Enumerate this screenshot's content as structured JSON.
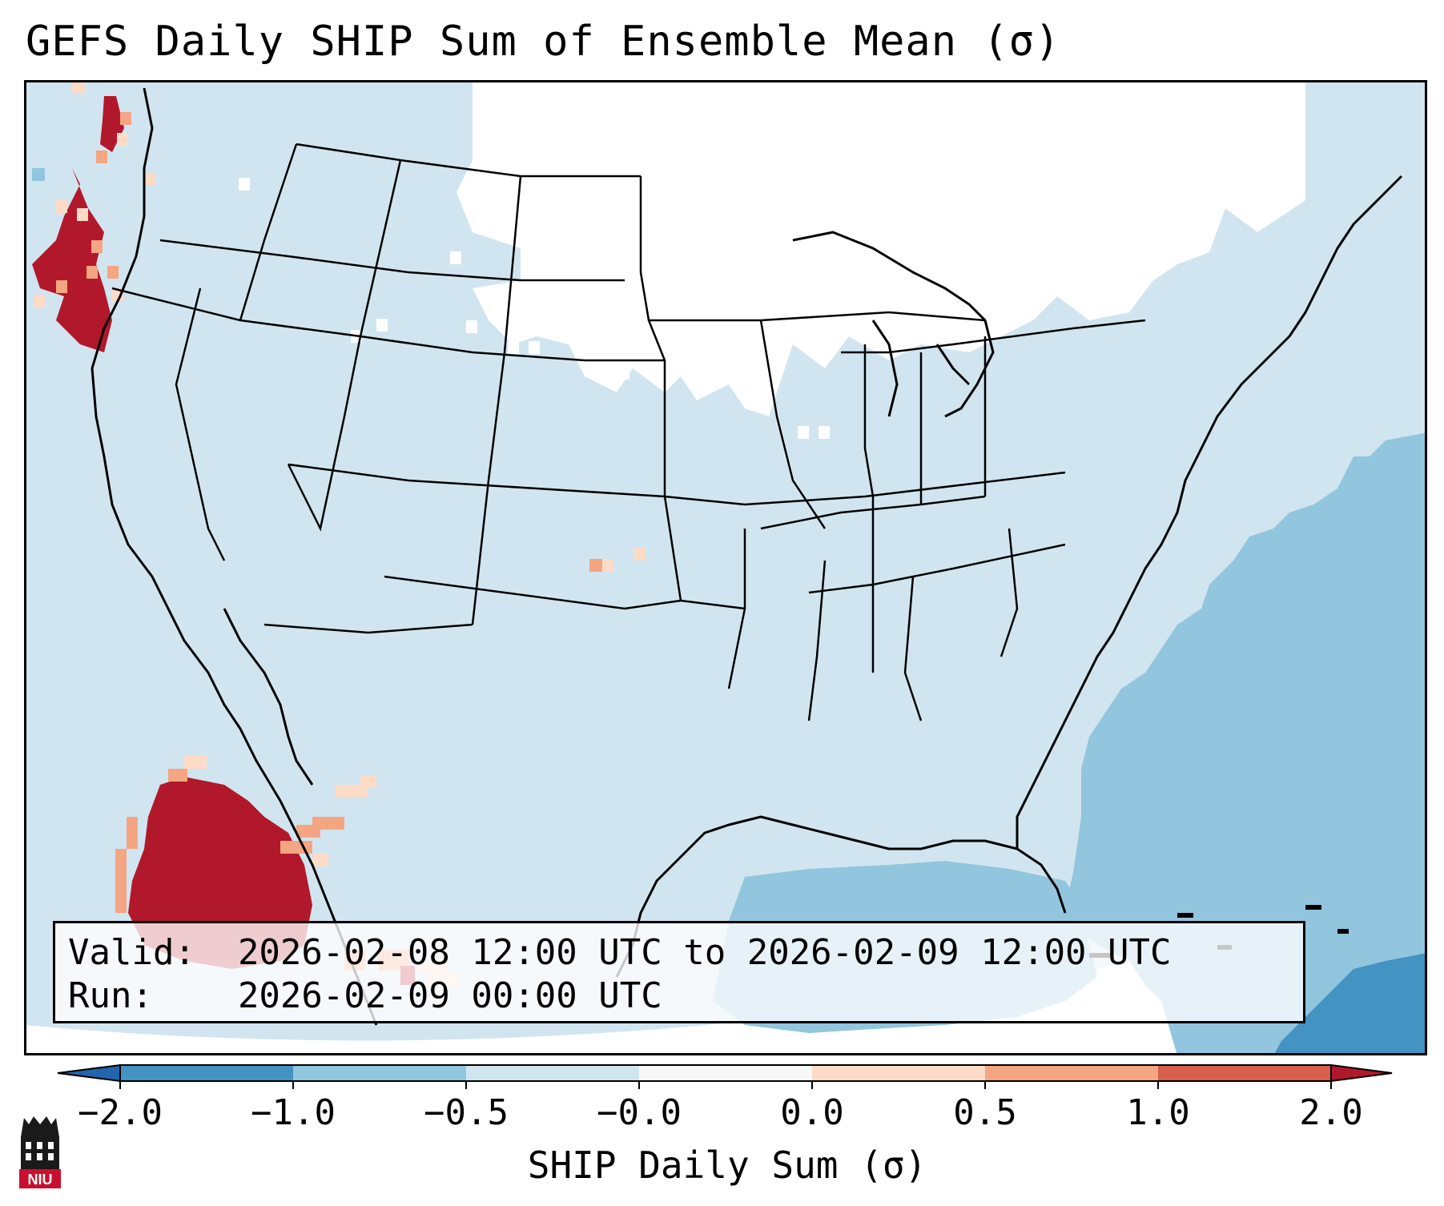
{
  "title": "GEFS Daily SHIP Sum of Ensemble Mean (σ)",
  "info": {
    "valid_label": "Valid:",
    "valid_value": "2026-02-08 12:00 UTC to 2026-02-09 12:00 UTC",
    "run_label": "Run:",
    "run_value": "2026-02-09 00:00 UTC"
  },
  "colorbar": {
    "title": "SHIP Daily Sum (σ)",
    "tick_labels": [
      "−2.0",
      "−1.0",
      "−0.5",
      "−0.0",
      "0.0",
      "0.5",
      "1.0",
      "2.0"
    ],
    "colors": [
      "#2166ac",
      "#4393c3",
      "#92c5de",
      "#d1e5f0",
      "#f7f7f7",
      "#fddbc7",
      "#f4a582",
      "#d6604d",
      "#b2182b"
    ],
    "extend": "both"
  },
  "map": {
    "background_fill": "#d1e5f0",
    "zero_area_fill": "#ffffff",
    "negative_ocean_fill": "#92c5de",
    "strong_negative_fill": "#4393c3",
    "high_positive_fill": "#b2182b",
    "moderate_positive_fill": "#f4a582",
    "weak_positive_fill": "#fddbc7"
  },
  "logo": {
    "text": "NIU",
    "icon": "niu-logo-icon"
  }
}
